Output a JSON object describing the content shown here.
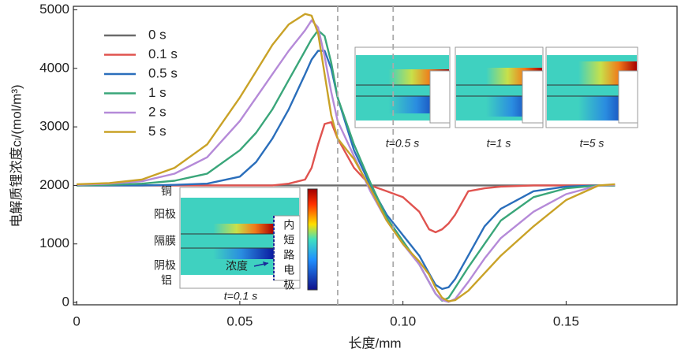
{
  "chart_data": {
    "type": "line",
    "xlabel": "长度/mm",
    "ylabel": "电解质锂浓度cₗ/(mol/m³)",
    "xlim": [
      -0.001,
      0.184
    ],
    "ylim": [
      -40,
      5060
    ],
    "xticks": [
      0,
      0.05,
      {
        "value": 0.1,
        "label": "0.10"
      },
      0.15
    ],
    "yticks": [
      0,
      1000,
      2000,
      3000,
      4000,
      5000
    ],
    "reference_lines": [
      0.08,
      0.097
    ],
    "x": [
      0,
      0.01,
      0.02,
      0.03,
      0.04,
      0.05,
      0.055,
      0.06,
      0.065,
      0.07,
      0.072,
      0.074,
      0.076,
      0.078,
      0.08,
      0.085,
      0.09,
      0.095,
      0.1,
      0.105,
      0.108,
      0.11,
      0.112,
      0.114,
      0.116,
      0.12,
      0.125,
      0.13,
      0.14,
      0.15,
      0.16,
      0.165
    ],
    "series": [
      {
        "name": "0 s",
        "color": "#6b6b6b",
        "values": [
          2000,
          2000,
          2000,
          2000,
          2000,
          2000,
          2000,
          2000,
          2000,
          2000,
          2000,
          2000,
          2000,
          2000,
          2000,
          2000,
          2000,
          2000,
          2000,
          2000,
          2000,
          2000,
          2000,
          2000,
          2000,
          2000,
          2000,
          2000,
          2000,
          2000,
          2000,
          2000
        ]
      },
      {
        "name": "0.1 s",
        "color": "#e0534f",
        "values": [
          2000,
          2000,
          2000,
          2000,
          2000,
          2000,
          2000,
          2000,
          2030,
          2100,
          2300,
          2700,
          3050,
          3080,
          2800,
          2300,
          2000,
          1900,
          1800,
          1550,
          1250,
          1200,
          1250,
          1350,
          1500,
          1900,
          1950,
          1980,
          2000,
          2000,
          2000,
          2000
        ]
      },
      {
        "name": "0.5 s",
        "color": "#2a6ebb",
        "values": [
          2000,
          2000,
          2000,
          2010,
          2030,
          2150,
          2400,
          2800,
          3300,
          3900,
          4150,
          4300,
          4300,
          4000,
          3500,
          2600,
          2000,
          1500,
          1150,
          800,
          500,
          300,
          230,
          260,
          400,
          800,
          1300,
          1600,
          1900,
          1980,
          2000,
          2000
        ]
      },
      {
        "name": "1 s",
        "color": "#3aa67a",
        "values": [
          2000,
          2010,
          2030,
          2080,
          2200,
          2600,
          2900,
          3300,
          3800,
          4300,
          4500,
          4650,
          4550,
          4100,
          3500,
          2700,
          2050,
          1450,
          1050,
          650,
          350,
          150,
          30,
          80,
          250,
          600,
          1000,
          1400,
          1800,
          1950,
          2000,
          2000
        ]
      },
      {
        "name": "2 s",
        "color": "#b58ad8",
        "values": [
          2010,
          2030,
          2070,
          2200,
          2480,
          3100,
          3500,
          3900,
          4300,
          4650,
          4820,
          4700,
          4200,
          3600,
          3100,
          2500,
          1900,
          1400,
          1000,
          650,
          350,
          150,
          40,
          10,
          60,
          350,
          750,
          1100,
          1550,
          1850,
          2000,
          2010
        ]
      },
      {
        "name": "5 s",
        "color": "#c9a227",
        "values": [
          2020,
          2040,
          2100,
          2300,
          2700,
          3500,
          3950,
          4400,
          4750,
          4930,
          4900,
          4600,
          3900,
          3200,
          2800,
          2450,
          1950,
          1400,
          1000,
          700,
          480,
          250,
          80,
          20,
          40,
          200,
          500,
          800,
          1300,
          1750,
          2000,
          2020
        ]
      }
    ],
    "annotations": {
      "inset_times": [
        "t=0.5 s",
        "t=1 s",
        "t=5 s"
      ],
      "main_inset_time": "t=0.1 s",
      "layers": [
        "铜",
        "阳极",
        "隔膜",
        "阴极",
        "铝"
      ],
      "concentration": "浓度",
      "short_circuit": "内短路电极"
    }
  }
}
